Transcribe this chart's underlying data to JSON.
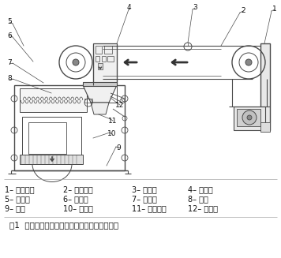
{
  "title": "图1  数字式、智能型定量包装秤机械结构示意图",
  "leg1_col1": "1– 传动部分",
  "leg1_col2": "2– 给料装置",
  "leg1_col3": "3– 电磁阀",
  "leg1_col4": "4– 给料口",
  "leg2_col1": "5– 双螺旋",
  "leg2_col2": "6– 截料门",
  "leg2_col3": "7– 三联件",
  "leg2_col4": "8– 秤斗",
  "leg3_col1": "9– 秤体",
  "leg3_col2": "10– 钢丝绳",
  "leg3_col3": "11– 限位螺栓",
  "leg3_col4": "12– 传感器",
  "bg_color": "#ffffff",
  "lc": "#4a4a4a",
  "tc": "#111111",
  "fig_width": 3.56,
  "fig_height": 3.27,
  "dpi": 100
}
